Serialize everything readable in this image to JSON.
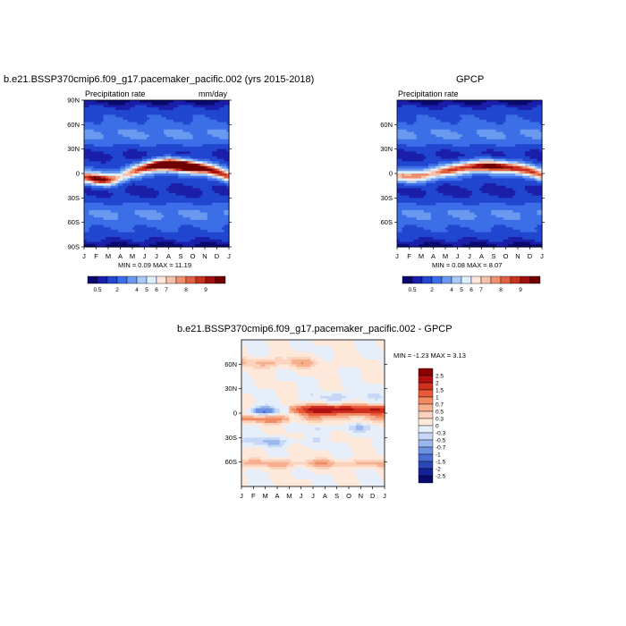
{
  "panels": [
    {
      "title": "b.e21.BSSP370cmip6.f09_g17.pacemaker_pacific.002 (yrs 2015-2018)",
      "subtitle_left": "Precipitation rate",
      "subtitle_right": "mm/day",
      "minmax": "MIN =   0.09 MAX =  11.19"
    },
    {
      "title": "GPCP",
      "subtitle_left": "Precipitation rate",
      "subtitle_right": "",
      "minmax": "MIN =   0.08 MAX =   8.07"
    },
    {
      "title": "b.e21.BSSP370cmip6.f09_g17.pacemaker_pacific.002 - GPCP",
      "minmax": "MIN =  -1.23 MAX =   3.13"
    }
  ],
  "chart_data": [
    {
      "type": "heatmap",
      "x_ticks": [
        "J",
        "F",
        "M",
        "A",
        "M",
        "J",
        "J",
        "A",
        "S",
        "O",
        "N",
        "D",
        "J"
      ],
      "y_ticks": [
        "90N",
        "60N",
        "30N",
        "0",
        "30S",
        "60S",
        "90S"
      ],
      "y_range": [
        -90,
        90
      ],
      "colorbar": {
        "labels": [
          "0.5",
          "2",
          "4",
          "5",
          "6",
          "7",
          "8",
          "9"
        ],
        "colors": [
          "#0a0a6e",
          "#1a1ea8",
          "#2146d0",
          "#3c6ee8",
          "#6a9af0",
          "#a8c8f8",
          "#ddeefc",
          "#fbe6dc",
          "#f8c0a8",
          "#f09070",
          "#e26040",
          "#c83020",
          "#a01010",
          "#700000"
        ]
      },
      "features": {
        "itcz_peak_lat_by_month": [
          -5,
          -7,
          -8,
          -5,
          2,
          7,
          10,
          11,
          10,
          8,
          6,
          2,
          -4
        ],
        "itcz_intensity_by_month": [
          6.5,
          8,
          7,
          5,
          5.5,
          7,
          9,
          10.5,
          11,
          10,
          8,
          7,
          6
        ]
      }
    },
    {
      "type": "heatmap",
      "x_ticks": [
        "J",
        "F",
        "M",
        "A",
        "M",
        "J",
        "J",
        "A",
        "S",
        "O",
        "N",
        "D",
        "J"
      ],
      "y_ticks": [
        "60N",
        "30N",
        "0",
        "30S",
        "60S"
      ],
      "y_range": [
        -90,
        90
      ],
      "colorbar": {
        "labels": [
          "0.5",
          "2",
          "4",
          "5",
          "6",
          "7",
          "8",
          "9"
        ],
        "colors": [
          "#0a0a6e",
          "#1a1ea8",
          "#2146d0",
          "#3c6ee8",
          "#6a9af0",
          "#a8c8f8",
          "#ddeefc",
          "#fbe6dc",
          "#f8c0a8",
          "#f09070",
          "#e26040",
          "#c83020",
          "#a01010",
          "#700000"
        ]
      },
      "features": {
        "itcz_peak_lat_by_month": [
          -3,
          -4,
          -3,
          0,
          3,
          6,
          8,
          9,
          9,
          8,
          6,
          3,
          -2
        ],
        "itcz_intensity_by_month": [
          5.5,
          5.5,
          5.5,
          5.5,
          6,
          6.5,
          7,
          7.5,
          8,
          7.5,
          7,
          6.5,
          5.5
        ]
      }
    },
    {
      "type": "heatmap",
      "x_ticks": [
        "J",
        "F",
        "M",
        "A",
        "M",
        "J",
        "J",
        "A",
        "S",
        "O",
        "N",
        "D",
        "J"
      ],
      "y_ticks": [
        "60N",
        "30N",
        "0",
        "30S",
        "60S"
      ],
      "y_range": [
        -90,
        90
      ],
      "colorbar": {
        "labels": [
          "2.5",
          "2",
          "1.5",
          "1",
          "0.7",
          "0.5",
          "0.3",
          "0",
          "-0.3",
          "-0.5",
          "-0.7",
          "-1",
          "-1.5",
          "-2",
          "-2.5"
        ],
        "colors": [
          "#8a0000",
          "#b01010",
          "#d03020",
          "#e85a3a",
          "#f08a62",
          "#f6b090",
          "#fbd2bc",
          "#fde8da",
          "#e6eefa",
          "#c6d8f6",
          "#9ab8ee",
          "#6e92e2",
          "#4a6ed2",
          "#2a46b8",
          "#14229a",
          "#0a0a6e"
        ]
      },
      "features": {
        "equatorial_dry_months": [
          "F",
          "M"
        ],
        "equatorial_wet_months": [
          "J",
          "A",
          "S",
          "O",
          "N",
          "D"
        ]
      }
    }
  ]
}
